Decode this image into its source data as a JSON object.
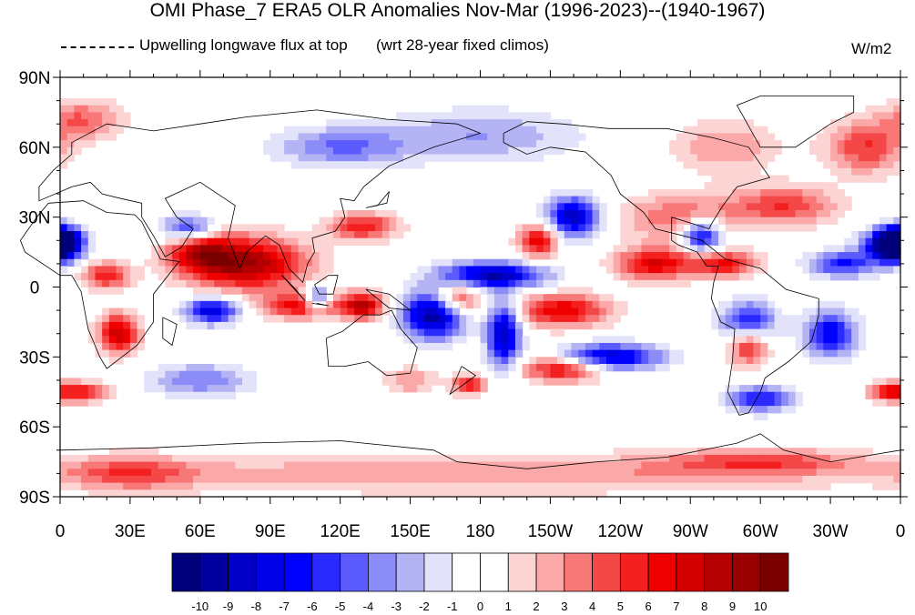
{
  "title": "OMI Phase_7 ERA5 OLR Anomalies Nov-Mar (1996-2023)--(1940-1967)",
  "subtitle_left": "Upwelling longwave flux at top",
  "subtitle_right": "(wrt 28-year fixed climos)",
  "units": "W/m2",
  "lat_labels": [
    "90N",
    "60N",
    "30N",
    "0",
    "30S",
    "60S",
    "90S"
  ],
  "lon_labels": [
    "0",
    "30E",
    "60E",
    "90E",
    "120E",
    "150E",
    "180",
    "150W",
    "120W",
    "90W",
    "60W",
    "30W",
    "0"
  ],
  "colorbar": {
    "labels": [
      "-10",
      "-9",
      "-8",
      "-7",
      "-6",
      "-5",
      "-4",
      "-3",
      "-2",
      "-1",
      "0",
      "1",
      "2",
      "3",
      "4",
      "5",
      "6",
      "7",
      "8",
      "9",
      "10"
    ],
    "colors": [
      "#00007a",
      "#0000a0",
      "#0000c8",
      "#0000e6",
      "#0000ff",
      "#2a2aff",
      "#5a5aff",
      "#8c8cf8",
      "#b4b4f4",
      "#e2e2fa",
      "#ffffff",
      "#ffffff",
      "#fcd4d4",
      "#fba8a8",
      "#f87878",
      "#f44848",
      "#f42020",
      "#ee0000",
      "#d40000",
      "#b40000",
      "#980000",
      "#7a0000"
    ]
  },
  "chart_data": {
    "type": "heatmap",
    "variable": "OLR anomaly",
    "units": "W/m2",
    "lon_range": [
      0,
      360
    ],
    "lat_range": [
      -90,
      90
    ],
    "color_levels": [
      -10,
      -9,
      -8,
      -7,
      -6,
      -5,
      -4,
      -3,
      -2,
      -1,
      0,
      1,
      2,
      3,
      4,
      5,
      6,
      7,
      8,
      9,
      10
    ],
    "features": [
      {
        "lon": 80,
        "lat": 10,
        "value": 9,
        "sx": 18,
        "sy": 8
      },
      {
        "lon": 60,
        "lat": 15,
        "value": 6,
        "sx": 10,
        "sy": 6
      },
      {
        "lon": 25,
        "lat": -20,
        "value": 8,
        "sx": 6,
        "sy": 6
      },
      {
        "lon": 20,
        "lat": 5,
        "value": 6,
        "sx": 7,
        "sy": 4
      },
      {
        "lon": 105,
        "lat": -8,
        "value": 7,
        "sx": 12,
        "sy": 4
      },
      {
        "lon": 130,
        "lat": -8,
        "value": 8,
        "sx": 6,
        "sy": 4
      },
      {
        "lon": 130,
        "lat": 26,
        "value": 6,
        "sx": 10,
        "sy": 4
      },
      {
        "lon": 170,
        "lat": -5,
        "value": 6,
        "sx": 7,
        "sy": 5
      },
      {
        "lon": 205,
        "lat": 20,
        "value": 7,
        "sx": 6,
        "sy": 5
      },
      {
        "lon": 215,
        "lat": -10,
        "value": 7,
        "sx": 14,
        "sy": 5
      },
      {
        "lon": 215,
        "lat": -35,
        "value": 7,
        "sx": 12,
        "sy": 4
      },
      {
        "lon": 255,
        "lat": 10,
        "value": 7,
        "sx": 12,
        "sy": 5
      },
      {
        "lon": 285,
        "lat": 10,
        "value": 6,
        "sx": 10,
        "sy": 4
      },
      {
        "lon": 295,
        "lat": -25,
        "value": 6,
        "sx": 6,
        "sy": 6
      },
      {
        "lon": 310,
        "lat": 35,
        "value": 5,
        "sx": 16,
        "sy": 6
      },
      {
        "lon": 265,
        "lat": 30,
        "value": 4,
        "sx": 18,
        "sy": 7
      },
      {
        "lon": 10,
        "lat": -45,
        "value": 6,
        "sx": 8,
        "sy": 3
      },
      {
        "lon": 355,
        "lat": -45,
        "value": 6,
        "sx": 6,
        "sy": 3
      },
      {
        "lon": 175,
        "lat": -42,
        "value": 6,
        "sx": 5,
        "sy": 3
      },
      {
        "lon": 150,
        "lat": -40,
        "value": 3,
        "sx": 8,
        "sy": 4
      },
      {
        "lon": 10,
        "lat": 72,
        "value": 4,
        "sx": 12,
        "sy": 6
      },
      {
        "lon": 345,
        "lat": 60,
        "value": 5,
        "sx": 12,
        "sy": 8
      },
      {
        "lon": 285,
        "lat": 60,
        "value": 3,
        "sx": 16,
        "sy": 8
      },
      {
        "lon": 180,
        "lat": -80,
        "value": 3,
        "sx": 120,
        "sy": 6
      },
      {
        "lon": 300,
        "lat": -75,
        "value": 4,
        "sx": 30,
        "sy": 4
      },
      {
        "lon": 30,
        "lat": -80,
        "value": 4,
        "sx": 20,
        "sy": 5
      },
      {
        "lon": 160,
        "lat": -12,
        "value": -10,
        "sx": 9,
        "sy": 7
      },
      {
        "lon": 185,
        "lat": 5,
        "value": -9,
        "sx": 16,
        "sy": 4
      },
      {
        "lon": 190,
        "lat": -20,
        "value": -9,
        "sx": 5,
        "sy": 10
      },
      {
        "lon": 235,
        "lat": -30,
        "value": -8,
        "sx": 16,
        "sy": 4
      },
      {
        "lon": 220,
        "lat": 30,
        "value": -9,
        "sx": 8,
        "sy": 6
      },
      {
        "lon": 275,
        "lat": 22,
        "value": -8,
        "sx": 6,
        "sy": 5
      },
      {
        "lon": 355,
        "lat": 18,
        "value": -8,
        "sx": 8,
        "sy": 5
      },
      {
        "lon": 335,
        "lat": 10,
        "value": -6,
        "sx": 10,
        "sy": 4
      },
      {
        "lon": 295,
        "lat": -15,
        "value": -7,
        "sx": 8,
        "sy": 6
      },
      {
        "lon": 330,
        "lat": -20,
        "value": -7,
        "sx": 8,
        "sy": 7
      },
      {
        "lon": 300,
        "lat": -48,
        "value": -6,
        "sx": 10,
        "sy": 4
      },
      {
        "lon": 65,
        "lat": -10,
        "value": -8,
        "sx": 8,
        "sy": 4
      },
      {
        "lon": 110,
        "lat": -5,
        "value": -8,
        "sx": 4,
        "sy": 4
      },
      {
        "lon": 55,
        "lat": 25,
        "value": -6,
        "sx": 8,
        "sy": 4
      },
      {
        "lon": 0,
        "lat": 20,
        "value": -6,
        "sx": 6,
        "sy": 4
      },
      {
        "lon": 120,
        "lat": 60,
        "value": -4,
        "sx": 20,
        "sy": 6
      },
      {
        "lon": 180,
        "lat": 65,
        "value": -3,
        "sx": 30,
        "sy": 8
      },
      {
        "lon": 60,
        "lat": -40,
        "value": -4,
        "sx": 15,
        "sy": 5
      },
      {
        "lon": 360,
        "lat": 18,
        "value": -8,
        "sx": 6,
        "sy": 5
      }
    ]
  }
}
